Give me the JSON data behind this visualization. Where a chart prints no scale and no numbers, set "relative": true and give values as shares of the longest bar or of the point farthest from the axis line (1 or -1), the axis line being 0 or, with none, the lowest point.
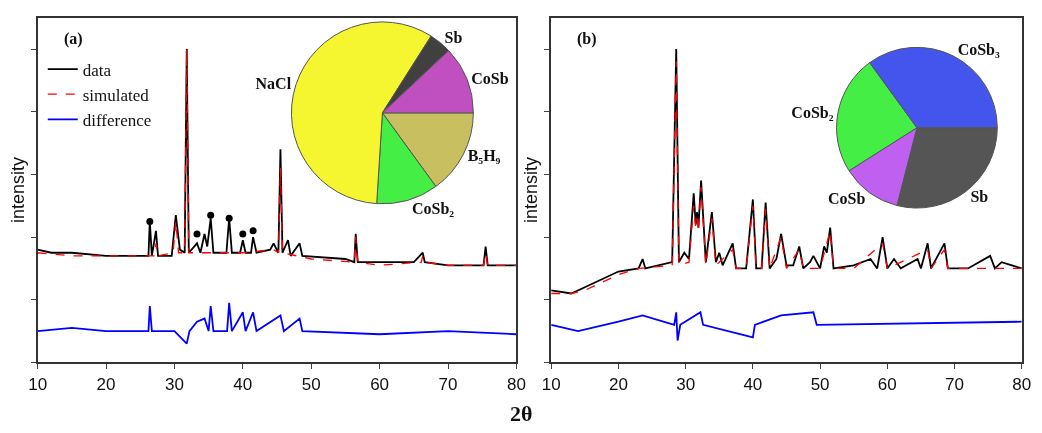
{
  "chart_data": [
    {
      "type": "line",
      "relative": true,
      "xlim": [
        10,
        80
      ],
      "xticks": [
        10,
        20,
        30,
        40,
        50,
        60,
        70,
        80
      ],
      "ylabel": "intensity",
      "xlabel": "2θ",
      "annotations": [
        "(a)"
      ],
      "legend": "top left",
      "marker": "none",
      "series": [
        {
          "name": "data",
          "color": "#000000",
          "line_style": "solid",
          "x": [
            10,
            12,
            15,
            20,
            25,
            26.2,
            26.4,
            26.7,
            27.3,
            27.6,
            29.6,
            30.2,
            30.8,
            31.5,
            31.8,
            32.1,
            33.3,
            33.8,
            34.4,
            34.8,
            35.3,
            35.7,
            37.6,
            38,
            38.4,
            39.6,
            40,
            40.4,
            41.2,
            41.5,
            42,
            44,
            44.5,
            45.2,
            45.5,
            45.8,
            46.6,
            47,
            48.3,
            48.7,
            55,
            56.3,
            56.5,
            56.8,
            60,
            65,
            66.3,
            66.6,
            70,
            75.2,
            75.5,
            75.8,
            80
          ],
          "values": [
            0.36,
            0.35,
            0.35,
            0.34,
            0.34,
            0.34,
            0.45,
            0.34,
            0.42,
            0.34,
            0.34,
            0.47,
            0.36,
            0.35,
            1.0,
            0.35,
            0.38,
            0.35,
            0.41,
            0.37,
            0.46,
            0.35,
            0.35,
            0.46,
            0.35,
            0.35,
            0.39,
            0.35,
            0.35,
            0.4,
            0.35,
            0.36,
            0.38,
            0.35,
            0.68,
            0.35,
            0.39,
            0.34,
            0.38,
            0.34,
            0.33,
            0.32,
            0.41,
            0.32,
            0.32,
            0.32,
            0.35,
            0.32,
            0.31,
            0.31,
            0.37,
            0.31,
            0.31
          ]
        },
        {
          "name": "simulated",
          "color": "#ff0000",
          "line_style": "dashed",
          "x": [
            10,
            15,
            20,
            25,
            27.1,
            27.3,
            27.5,
            29.8,
            30.2,
            30.6,
            31.5,
            31.8,
            32.1,
            35,
            40,
            44.5,
            45.2,
            45.5,
            45.8,
            50,
            56.3,
            56.5,
            56.8,
            60,
            66.1,
            66.3,
            66.5,
            70,
            75.2,
            75.5,
            75.8,
            80
          ],
          "values": [
            0.35,
            0.34,
            0.34,
            0.34,
            0.34,
            0.38,
            0.34,
            0.35,
            0.45,
            0.35,
            0.35,
            1.0,
            0.35,
            0.35,
            0.35,
            0.36,
            0.35,
            0.62,
            0.35,
            0.33,
            0.32,
            0.4,
            0.32,
            0.31,
            0.32,
            0.34,
            0.32,
            0.31,
            0.31,
            0.35,
            0.31,
            0.31
          ]
        },
        {
          "name": "difference",
          "color": "#0000ff",
          "line_style": "solid",
          "x": [
            10,
            15,
            20,
            26.2,
            26.4,
            26.7,
            30,
            31.8,
            32.2,
            33.3,
            34.4,
            35,
            35.3,
            35.7,
            37.7,
            38,
            38.4,
            40,
            40.4,
            41.5,
            42,
            45.5,
            46,
            48.3,
            48.7,
            60,
            70,
            80
          ],
          "values": [
            0.1,
            0.11,
            0.1,
            0.1,
            0.18,
            0.1,
            0.1,
            0.06,
            0.1,
            0.13,
            0.14,
            0.1,
            0.18,
            0.1,
            0.1,
            0.19,
            0.1,
            0.16,
            0.1,
            0.16,
            0.1,
            0.15,
            0.1,
            0.14,
            0.1,
            0.09,
            0.1,
            0.09
          ]
        },
        {
          "type": "scatter",
          "color": "#000000",
          "marker": "circle",
          "x": [
            26.4,
            33.3,
            35.3,
            38,
            40,
            41.5
          ],
          "values": [
            0.45,
            0.41,
            0.47,
            0.46,
            0.41,
            0.42
          ]
        }
      ]
    },
    {
      "type": "pie",
      "categories": [
        "B₅H₉",
        "CoSb₂",
        "NaCl",
        "Sb",
        "CoSb"
      ],
      "values": [
        15,
        11,
        58,
        4,
        12
      ],
      "colors": [
        "#c8c060",
        "#44ee44",
        "#f5f530",
        "#404040",
        "#c050c0"
      ]
    },
    {
      "type": "line",
      "relative": true,
      "xlim": [
        10,
        80
      ],
      "xticks": [
        10,
        20,
        30,
        40,
        50,
        60,
        70,
        80
      ],
      "ylabel": "intensity",
      "annotations": [
        "(b)"
      ],
      "marker": "none",
      "series": [
        {
          "color": "#000000",
          "line_style": "solid",
          "x": [
            10,
            13,
            15,
            20,
            23,
            23.6,
            24,
            28,
            28.6,
            29,
            29.8,
            30.5,
            31.2,
            31.5,
            31.7,
            31.9,
            32.3,
            33,
            33.9,
            34.5,
            35,
            35.5,
            37,
            37.5,
            39,
            40,
            40.5,
            41.3,
            41.9,
            42.5,
            43.5,
            44.2,
            45,
            46,
            46.9,
            47.5,
            48.5,
            49,
            50,
            50.6,
            51,
            51.5,
            52,
            55,
            57.5,
            58.5,
            59.3,
            60,
            61,
            62,
            64.5,
            65,
            66,
            66.5,
            68.5,
            69,
            72,
            75.3,
            76,
            77,
            80
          ],
          "values": [
            0.23,
            0.22,
            0.24,
            0.29,
            0.3,
            0.33,
            0.3,
            0.32,
            1.0,
            0.32,
            0.35,
            0.33,
            0.54,
            0.44,
            0.48,
            0.43,
            0.58,
            0.32,
            0.48,
            0.32,
            0.35,
            0.31,
            0.38,
            0.3,
            0.3,
            0.52,
            0.3,
            0.3,
            0.51,
            0.3,
            0.33,
            0.41,
            0.31,
            0.31,
            0.37,
            0.3,
            0.32,
            0.34,
            0.3,
            0.37,
            0.35,
            0.43,
            0.3,
            0.31,
            0.33,
            0.3,
            0.4,
            0.3,
            0.33,
            0.3,
            0.33,
            0.3,
            0.38,
            0.3,
            0.38,
            0.3,
            0.3,
            0.34,
            0.3,
            0.32,
            0.3
          ]
        },
        {
          "color": "#ff0000",
          "line_style": "dashed",
          "x": [
            10,
            13,
            15,
            20,
            23,
            28,
            28.6,
            29,
            30.5,
            31.2,
            31.5,
            31.7,
            31.9,
            32.3,
            33,
            33.9,
            34.5,
            37,
            37.5,
            39,
            40,
            40.5,
            41.3,
            41.9,
            42.5,
            44.2,
            45,
            46.9,
            47.5,
            50,
            51.5,
            52,
            55,
            59.3,
            60,
            66,
            66.5,
            68.5,
            69,
            80
          ],
          "values": [
            0.22,
            0.22,
            0.23,
            0.28,
            0.3,
            0.31,
            0.96,
            0.31,
            0.32,
            0.5,
            0.43,
            0.46,
            0.42,
            0.56,
            0.31,
            0.46,
            0.31,
            0.36,
            0.3,
            0.3,
            0.5,
            0.3,
            0.3,
            0.49,
            0.3,
            0.4,
            0.3,
            0.36,
            0.3,
            0.3,
            0.42,
            0.3,
            0.3,
            0.38,
            0.3,
            0.36,
            0.3,
            0.36,
            0.3,
            0.3
          ]
        },
        {
          "color": "#0000ff",
          "line_style": "solid",
          "x": [
            10,
            14,
            20,
            23.6,
            28.3,
            28.6,
            28.8,
            29.2,
            32.2,
            32.6,
            40,
            40.3,
            44.2,
            49,
            49.5,
            80
          ],
          "values": [
            0.12,
            0.1,
            0.13,
            0.15,
            0.12,
            0.16,
            0.07,
            0.12,
            0.16,
            0.12,
            0.08,
            0.12,
            0.15,
            0.16,
            0.12,
            0.13
          ]
        }
      ]
    },
    {
      "type": "pie",
      "categories": [
        "Sb",
        "CoSb",
        "CoSb₂",
        "CoSb₃"
      ],
      "values": [
        29,
        12,
        24,
        35
      ],
      "colors": [
        "#555555",
        "#c060f0",
        "#44ee44",
        "#4455ee"
      ]
    }
  ]
}
